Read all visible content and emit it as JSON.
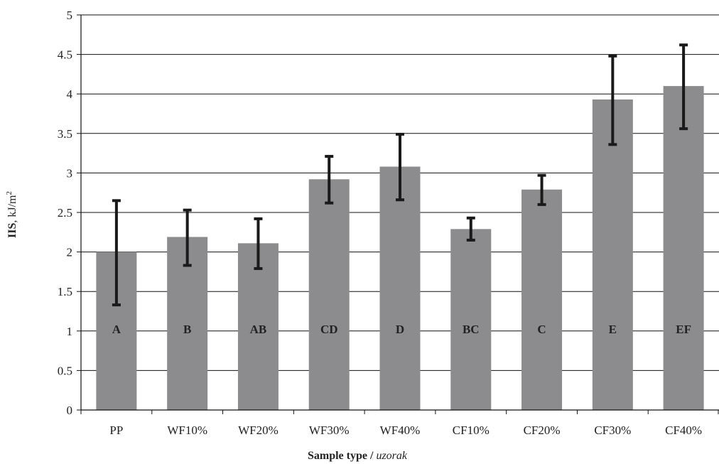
{
  "chart_data": {
    "type": "bar",
    "categories": [
      "PP",
      "WF10%",
      "WF20%",
      "WF30%",
      "WF40%",
      "CF10%",
      "CF20%",
      "CF30%",
      "CF40%"
    ],
    "values": [
      2.0,
      2.19,
      2.11,
      2.92,
      3.08,
      2.29,
      2.79,
      3.93,
      4.1
    ],
    "error_low": [
      1.33,
      1.83,
      1.79,
      2.62,
      2.66,
      2.15,
      2.6,
      3.36,
      3.56
    ],
    "error_high": [
      2.65,
      2.53,
      2.42,
      3.21,
      3.49,
      2.43,
      2.97,
      4.48,
      4.62
    ],
    "group_labels": [
      "A",
      "B",
      "AB",
      "CD",
      "D",
      "BC",
      "C",
      "E",
      "EF"
    ],
    "ylim": [
      0,
      5
    ],
    "yticks": [
      "0",
      "0.5",
      "1",
      "1.5",
      "2",
      "2.5",
      "3",
      "3.5",
      "4",
      "4.5",
      "5"
    ],
    "ylabel_bold": "IIS",
    "ylabel_rest": ", kJ/m",
    "ylabel_sup": "2",
    "xlabel_bold": "Sample type / ",
    "xlabel_italic": "uzorak",
    "grid": true,
    "bar_color": "#8c8c8e",
    "error_color": "#1a1a1a"
  }
}
